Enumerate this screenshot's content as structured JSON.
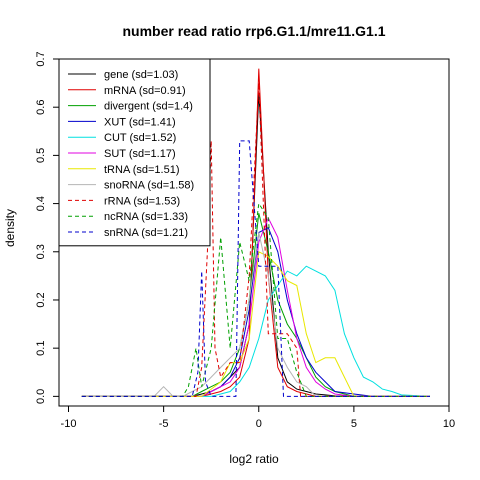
{
  "chart_data": {
    "type": "line",
    "title": "number read ratio rrp6.G1.1/mre11.G1.1",
    "xlabel": "log2 ratio",
    "ylabel": "density",
    "xlim": [
      -10.5,
      10
    ],
    "ylim": [
      -0.02,
      0.7
    ],
    "xticks": [
      -10,
      -5,
      0,
      5,
      10
    ],
    "yticks": [
      0.0,
      0.1,
      0.2,
      0.3,
      0.4,
      0.5,
      0.6,
      0.7
    ],
    "ytick_labels": [
      "0.0",
      "0.1",
      "0.2",
      "0.3",
      "0.4",
      "0.5",
      "0.6",
      "0.7"
    ],
    "legend_position": "top-left",
    "grid": false,
    "series": [
      {
        "name": "gene (sd=1.03)",
        "color": "#000000",
        "dashed": false,
        "x": [
          -9.3,
          -3.5,
          -3.0,
          -2.5,
          -2.0,
          -1.5,
          -1.0,
          -0.5,
          0.0,
          0.5,
          1.0,
          1.5,
          2.0,
          2.5,
          3.0,
          3.5,
          4.0,
          5.0,
          9.0
        ],
        "y": [
          0.0,
          0.0,
          0.005,
          0.01,
          0.02,
          0.04,
          0.06,
          0.15,
          0.63,
          0.3,
          0.08,
          0.03,
          0.015,
          0.01,
          0.005,
          0.003,
          0.001,
          0.0,
          0.0
        ]
      },
      {
        "name": "mRNA (sd=0.91)",
        "color": "#e00000",
        "dashed": false,
        "x": [
          -9.3,
          -3.0,
          -2.5,
          -2.0,
          -1.5,
          -1.0,
          -0.5,
          0.0,
          0.5,
          1.0,
          1.5,
          2.0,
          3.0,
          9.0
        ],
        "y": [
          0.0,
          0.0,
          0.005,
          0.01,
          0.02,
          0.04,
          0.12,
          0.68,
          0.25,
          0.06,
          0.02,
          0.01,
          0.0,
          0.0
        ]
      },
      {
        "name": "divergent (sd=1.4)",
        "color": "#00a000",
        "dashed": false,
        "x": [
          -9.3,
          -3.5,
          -3.0,
          -2.5,
          -2.0,
          -1.5,
          -1.0,
          -0.5,
          0.0,
          0.5,
          1.0,
          1.5,
          2.0,
          2.5,
          3.0,
          3.5,
          4.0,
          5.0,
          9.0
        ],
        "y": [
          0.0,
          0.0,
          0.01,
          0.02,
          0.03,
          0.05,
          0.1,
          0.2,
          0.38,
          0.3,
          0.2,
          0.15,
          0.12,
          0.08,
          0.04,
          0.02,
          0.01,
          0.0,
          0.0
        ]
      },
      {
        "name": "XUT (sd=1.41)",
        "color": "#0000cc",
        "dashed": false,
        "x": [
          -9.3,
          -3.0,
          -2.5,
          -2.0,
          -1.5,
          -1.0,
          -0.5,
          0.0,
          0.5,
          1.0,
          1.5,
          2.0,
          2.5,
          3.0,
          3.5,
          4.0,
          5.0,
          6.0,
          9.0
        ],
        "y": [
          0.0,
          0.0,
          0.01,
          0.02,
          0.04,
          0.08,
          0.18,
          0.34,
          0.35,
          0.3,
          0.2,
          0.13,
          0.08,
          0.05,
          0.03,
          0.01,
          0.005,
          0.0,
          0.0
        ]
      },
      {
        "name": "CUT (sd=1.52)",
        "color": "#00e0e0",
        "dashed": false,
        "x": [
          -9.3,
          -2.5,
          -2.0,
          -1.5,
          -1.0,
          -0.5,
          0.0,
          0.5,
          1.0,
          1.5,
          2.0,
          2.5,
          3.0,
          3.5,
          4.0,
          4.5,
          5.0,
          5.5,
          6.0,
          6.5,
          7.0,
          7.5,
          9.0
        ],
        "y": [
          0.0,
          0.0,
          0.005,
          0.01,
          0.03,
          0.06,
          0.12,
          0.2,
          0.23,
          0.26,
          0.25,
          0.27,
          0.26,
          0.25,
          0.22,
          0.13,
          0.08,
          0.04,
          0.03,
          0.015,
          0.01,
          0.003,
          0.0
        ]
      },
      {
        "name": "SUT (sd=1.17)",
        "color": "#e000e0",
        "dashed": false,
        "x": [
          -9.3,
          -3.0,
          -2.5,
          -2.0,
          -1.5,
          -1.0,
          -0.5,
          0.0,
          0.5,
          1.0,
          1.5,
          2.0,
          2.5,
          3.0,
          3.5,
          4.0,
          5.0,
          9.0
        ],
        "y": [
          0.0,
          0.0,
          0.01,
          0.02,
          0.03,
          0.06,
          0.15,
          0.32,
          0.37,
          0.33,
          0.22,
          0.12,
          0.06,
          0.03,
          0.015,
          0.005,
          0.0,
          0.0
        ]
      },
      {
        "name": "tRNA (sd=1.51)",
        "color": "#e8e800",
        "dashed": false,
        "x": [
          -9.3,
          -3.0,
          -2.0,
          -1.5,
          -1.0,
          -0.5,
          0.0,
          0.5,
          1.0,
          1.5,
          2.0,
          2.5,
          3.0,
          3.5,
          4.0,
          4.5,
          5.0,
          9.0
        ],
        "y": [
          0.0,
          0.0,
          0.03,
          0.07,
          0.07,
          0.12,
          0.3,
          0.29,
          0.27,
          0.24,
          0.23,
          0.13,
          0.07,
          0.08,
          0.08,
          0.04,
          0.0,
          0.0
        ]
      },
      {
        "name": "snoRNA (sd=1.58)",
        "color": "#b4b4b4",
        "dashed": false,
        "x": [
          -9.3,
          -5.5,
          -5.0,
          -4.5,
          -4.0,
          -3.5,
          -3.0,
          -2.5,
          -2.0,
          -1.5,
          -1.0,
          -0.5,
          0.0,
          0.5,
          1.0,
          1.5,
          2.0,
          2.5,
          3.0,
          9.0
        ],
        "y": [
          0.0,
          0.0,
          0.02,
          0.0,
          0.0,
          0.01,
          0.02,
          0.04,
          0.06,
          0.08,
          0.1,
          0.2,
          0.34,
          0.25,
          0.1,
          0.06,
          0.03,
          0.02,
          0.0,
          0.0
        ]
      },
      {
        "name": "rRNA (sd=1.53)",
        "color": "#e00000",
        "dashed": true,
        "x": [
          -9.3,
          -3.3,
          -3.0,
          -2.7,
          -2.5,
          -2.3,
          -2.0,
          -1.5,
          -1.0,
          -0.5,
          0.0,
          0.5,
          1.0,
          1.5,
          2.0,
          2.2,
          2.5,
          9.0
        ],
        "y": [
          0.0,
          0.0,
          0.06,
          0.3,
          0.53,
          0.1,
          0.04,
          0.07,
          0.07,
          0.25,
          0.65,
          0.13,
          0.13,
          0.13,
          0.1,
          0.0,
          0.0,
          0.0
        ]
      },
      {
        "name": "ncRNA (sd=1.33)",
        "color": "#00a000",
        "dashed": true,
        "x": [
          -9.3,
          -4.0,
          -3.7,
          -3.3,
          -3.0,
          -2.5,
          -2.0,
          -1.5,
          -1.0,
          -0.5,
          0.0,
          0.5,
          1.0,
          1.5,
          2.0,
          2.5,
          3.0,
          9.0
        ],
        "y": [
          0.0,
          0.0,
          0.02,
          0.1,
          0.02,
          0.1,
          0.33,
          0.1,
          0.32,
          0.24,
          0.4,
          0.37,
          0.12,
          0.12,
          0.05,
          0.0,
          0.0,
          0.0
        ]
      },
      {
        "name": "snRNA (sd=1.21)",
        "color": "#0000cc",
        "dashed": true,
        "x": [
          -9.3,
          -3.5,
          -3.2,
          -3.0,
          -2.8,
          -2.5,
          -1.5,
          -1.2,
          -1.0,
          -0.5,
          0.0,
          0.5,
          1.0,
          1.3,
          1.5,
          9.0
        ],
        "y": [
          0.0,
          0.0,
          0.05,
          0.26,
          0.03,
          0.0,
          0.0,
          0.0,
          0.53,
          0.53,
          0.27,
          0.27,
          0.27,
          0.0,
          0.0,
          0.0
        ]
      }
    ]
  }
}
